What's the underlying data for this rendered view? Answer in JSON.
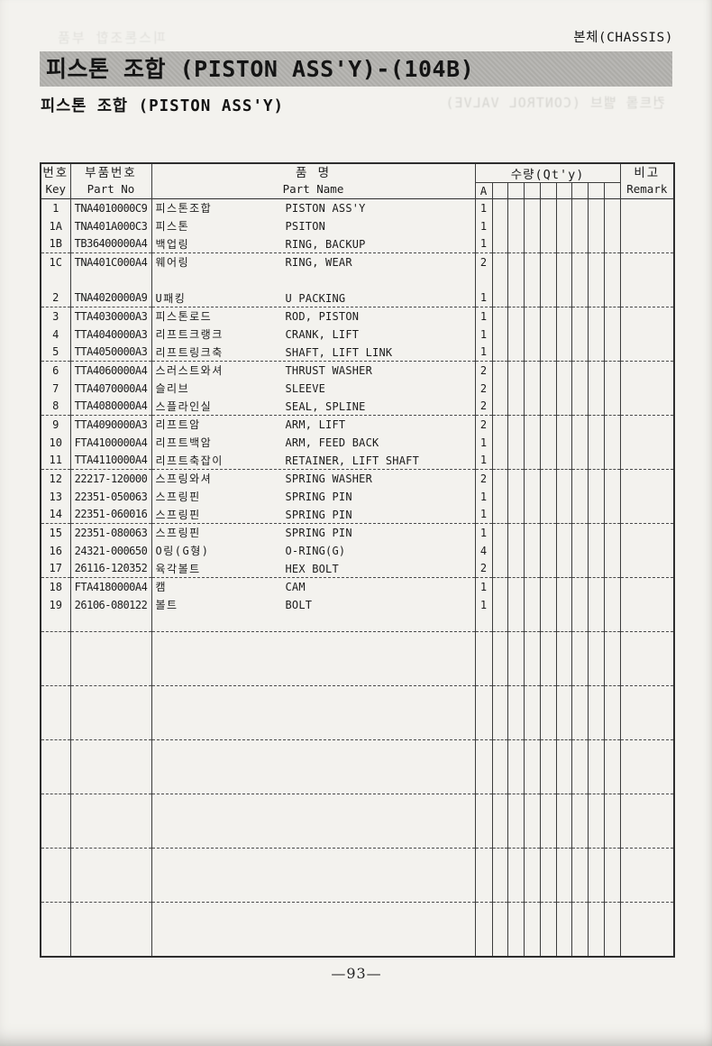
{
  "page": {
    "corner_label": "본체(CHASSIS)",
    "title": "피스톤 조합 (PISTON ASS'Y)-(104B)",
    "subtitle": "피스톤 조합 (PISTON ASS'Y)",
    "page_number": "—93—",
    "bleed_through": {
      "top_left": "피스톤조합 부품",
      "mid_right": "컨트롤 밸브 (CONTROL VALVE)"
    }
  },
  "table": {
    "headers": {
      "key_kr": "번호",
      "key_en": "Key",
      "part_no_kr": "부품번호",
      "part_no_en": "Part No",
      "part_name_kr": "품 명",
      "part_name_en": "Part Name",
      "qty_label": "수량(Qt'y)",
      "qty_sub_a": "A",
      "remark_kr": "비고",
      "remark_en": "Remark"
    },
    "qty_empty_subcolumns": 8,
    "groups": [
      [
        {
          "key": "1",
          "part_no": "TNA4010000C9",
          "name_kr": "피스톤조합",
          "name_en": "PISTON ASS'Y",
          "qty": "1"
        },
        {
          "key": "1A",
          "part_no": "TNA401A000C3",
          "name_kr": "피스톤",
          "name_en": "PSITON",
          "qty": "1"
        },
        {
          "key": "1B",
          "part_no": "TB36400000A4",
          "name_kr": "백업링",
          "name_en": "RING, BACKUP",
          "qty": "1"
        }
      ],
      [
        {
          "key": "1C",
          "part_no": "TNA401C000A4",
          "name_kr": "웨어링",
          "name_en": "RING, WEAR",
          "qty": "2"
        },
        null,
        {
          "key": "2",
          "part_no": "TNA4020000A9",
          "name_kr": "U패킹",
          "name_en": "U PACKING",
          "qty": "1"
        }
      ],
      [
        {
          "key": "3",
          "part_no": "TTA4030000A3",
          "name_kr": "피스톤로드",
          "name_en": "ROD, PISTON",
          "qty": "1"
        },
        {
          "key": "4",
          "part_no": "TTA4040000A3",
          "name_kr": "리프트크랭크",
          "name_en": "CRANK, LIFT",
          "qty": "1"
        },
        {
          "key": "5",
          "part_no": "TTA4050000A3",
          "name_kr": "리프트링크축",
          "name_en": "SHAFT, LIFT LINK",
          "qty": "1"
        }
      ],
      [
        {
          "key": "6",
          "part_no": "TTA4060000A4",
          "name_kr": "스러스트와셔",
          "name_en": "THRUST WASHER",
          "qty": "2"
        },
        {
          "key": "7",
          "part_no": "TTA4070000A4",
          "name_kr": "슬리브",
          "name_en": "SLEEVE",
          "qty": "2"
        },
        {
          "key": "8",
          "part_no": "TTA4080000A4",
          "name_kr": "스플라인실",
          "name_en": "SEAL, SPLINE",
          "qty": "2"
        }
      ],
      [
        {
          "key": "9",
          "part_no": "TTA4090000A3",
          "name_kr": "리프트암",
          "name_en": "ARM, LIFT",
          "qty": "2"
        },
        {
          "key": "10",
          "part_no": "FTA4100000A4",
          "name_kr": "리프트백암",
          "name_en": "ARM, FEED BACK",
          "qty": "1"
        },
        {
          "key": "11",
          "part_no": "TTA4110000A4",
          "name_kr": "리프트축잡이",
          "name_en": "RETAINER, LIFT SHAFT",
          "qty": "1"
        }
      ],
      [
        {
          "key": "12",
          "part_no": "22217-120000",
          "name_kr": "스프링와셔",
          "name_en": "SPRING WASHER",
          "qty": "2"
        },
        {
          "key": "13",
          "part_no": "22351-050063",
          "name_kr": "스프링핀",
          "name_en": "SPRING PIN",
          "qty": "1"
        },
        {
          "key": "14",
          "part_no": "22351-060016",
          "name_kr": "스프링핀",
          "name_en": "SPRING PIN",
          "qty": "1"
        }
      ],
      [
        {
          "key": "15",
          "part_no": "22351-080063",
          "name_kr": "스프링핀",
          "name_en": "SPRING PIN",
          "qty": "1"
        },
        {
          "key": "16",
          "part_no": "24321-000650",
          "name_kr": "O링(G형)",
          "name_en": "O-RING(G)",
          "qty": "4"
        },
        {
          "key": "17",
          "part_no": "26116-120352",
          "name_kr": "육각볼트",
          "name_en": "HEX BOLT",
          "qty": "2"
        }
      ],
      [
        {
          "key": "18",
          "part_no": "FTA4180000A4",
          "name_kr": "캠",
          "name_en": "CAM",
          "qty": "1"
        },
        {
          "key": "19",
          "part_no": "26106-080122",
          "name_kr": "볼트",
          "name_en": "BOLT",
          "qty": "1"
        },
        null
      ],
      [
        null,
        null,
        null
      ],
      [
        null,
        null,
        null
      ],
      [
        null,
        null,
        null
      ],
      [
        null,
        null,
        null
      ],
      [
        null,
        null,
        null
      ],
      [
        null,
        null,
        null
      ]
    ]
  }
}
